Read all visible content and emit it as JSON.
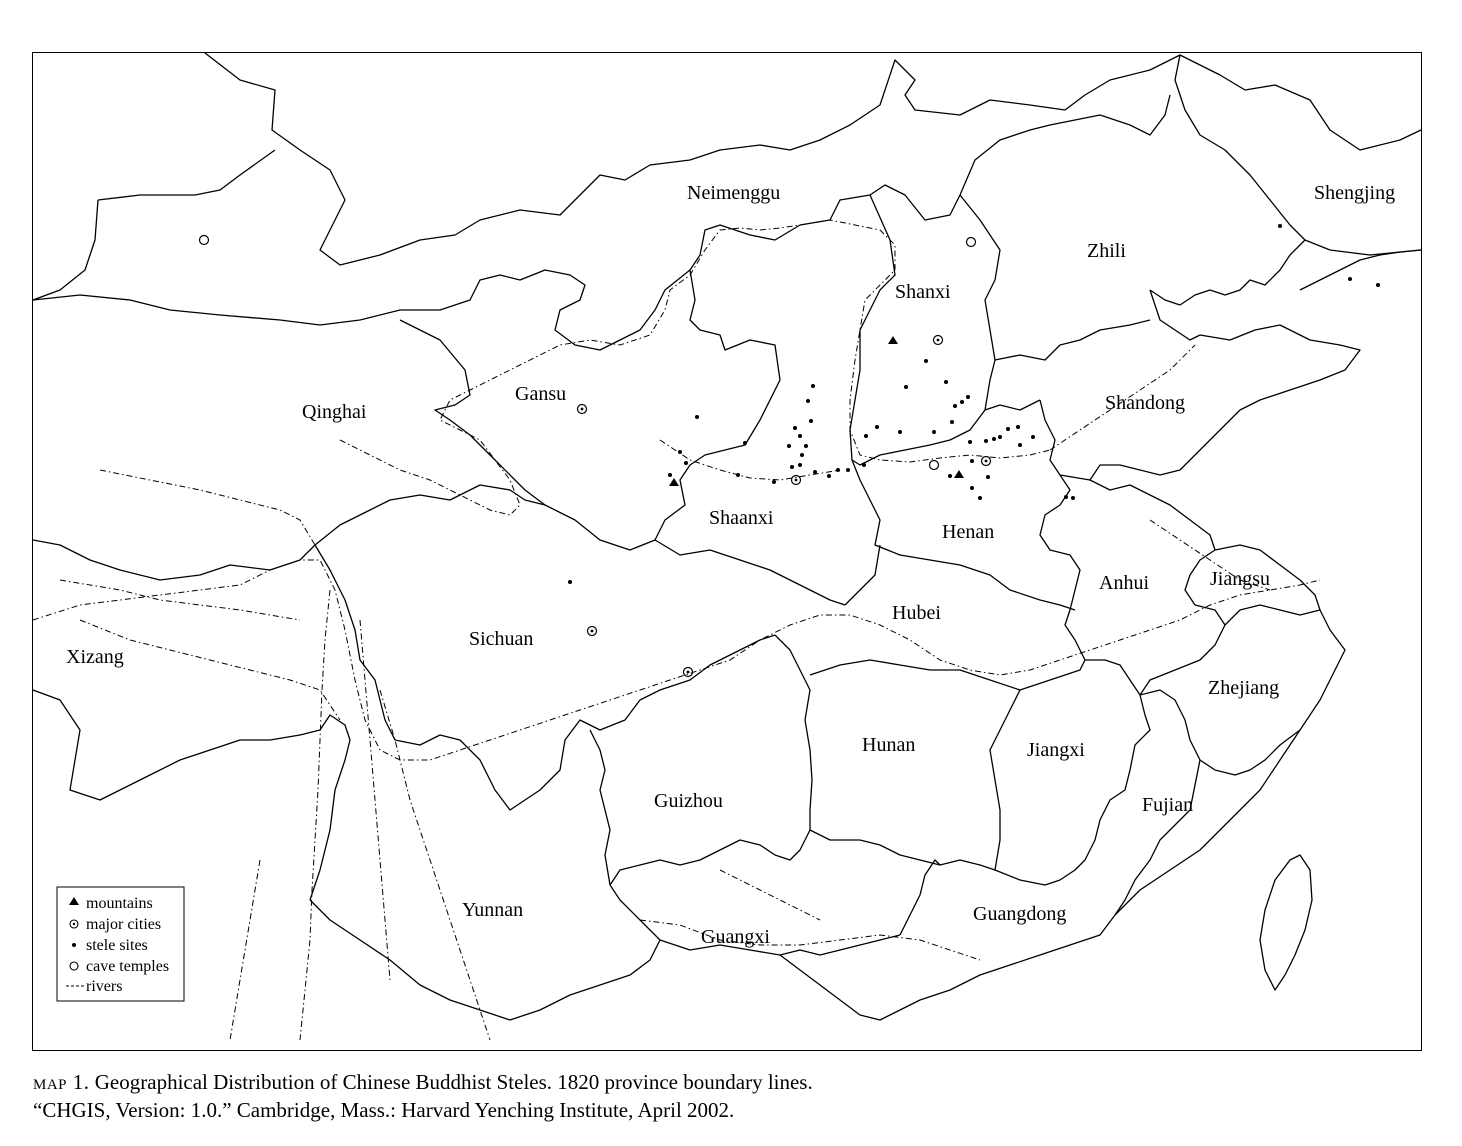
{
  "provinces": [
    {
      "id": "neimenggu",
      "name": "Neimenggu"
    },
    {
      "id": "shengjing",
      "name": "Shengjing"
    },
    {
      "id": "zhili",
      "name": "Zhili"
    },
    {
      "id": "shanxi",
      "name": "Shanxi"
    },
    {
      "id": "gansu",
      "name": "Gansu"
    },
    {
      "id": "qinghai",
      "name": "Qinghai"
    },
    {
      "id": "shandong",
      "name": "Shandong"
    },
    {
      "id": "shaanxi",
      "name": "Shaanxi"
    },
    {
      "id": "henan",
      "name": "Henan"
    },
    {
      "id": "sichuan",
      "name": "Sichuan"
    },
    {
      "id": "xizang",
      "name": "Xizang"
    },
    {
      "id": "hubei",
      "name": "Hubei"
    },
    {
      "id": "anhui",
      "name": "Anhui"
    },
    {
      "id": "jiangsu",
      "name": "Jiangsu"
    },
    {
      "id": "zhejiang",
      "name": "Zhejiang"
    },
    {
      "id": "hunan",
      "name": "Hunan"
    },
    {
      "id": "jiangxi",
      "name": "Jiangxi"
    },
    {
      "id": "guizhou",
      "name": "Guizhou"
    },
    {
      "id": "fujian",
      "name": "Fujian"
    },
    {
      "id": "yunnan",
      "name": "Yunnan"
    },
    {
      "id": "guangxi",
      "name": "Guangxi"
    },
    {
      "id": "guangdong",
      "name": "Guangdong"
    }
  ],
  "legend": {
    "mountains": "mountains",
    "major_cities": "major cities",
    "stele_sites": "stele sites",
    "cave_temples": "cave temples",
    "rivers": "rivers"
  },
  "caption": {
    "prefix": "map 1.",
    "line1": " Geographical Distribution of Chinese Buddhist Steles. 1820 province boundary lines.",
    "line2": "“CHGIS, Version: 1.0.” Cambridge, Mass.: Harvard Yenching Institute, April 2002."
  }
}
